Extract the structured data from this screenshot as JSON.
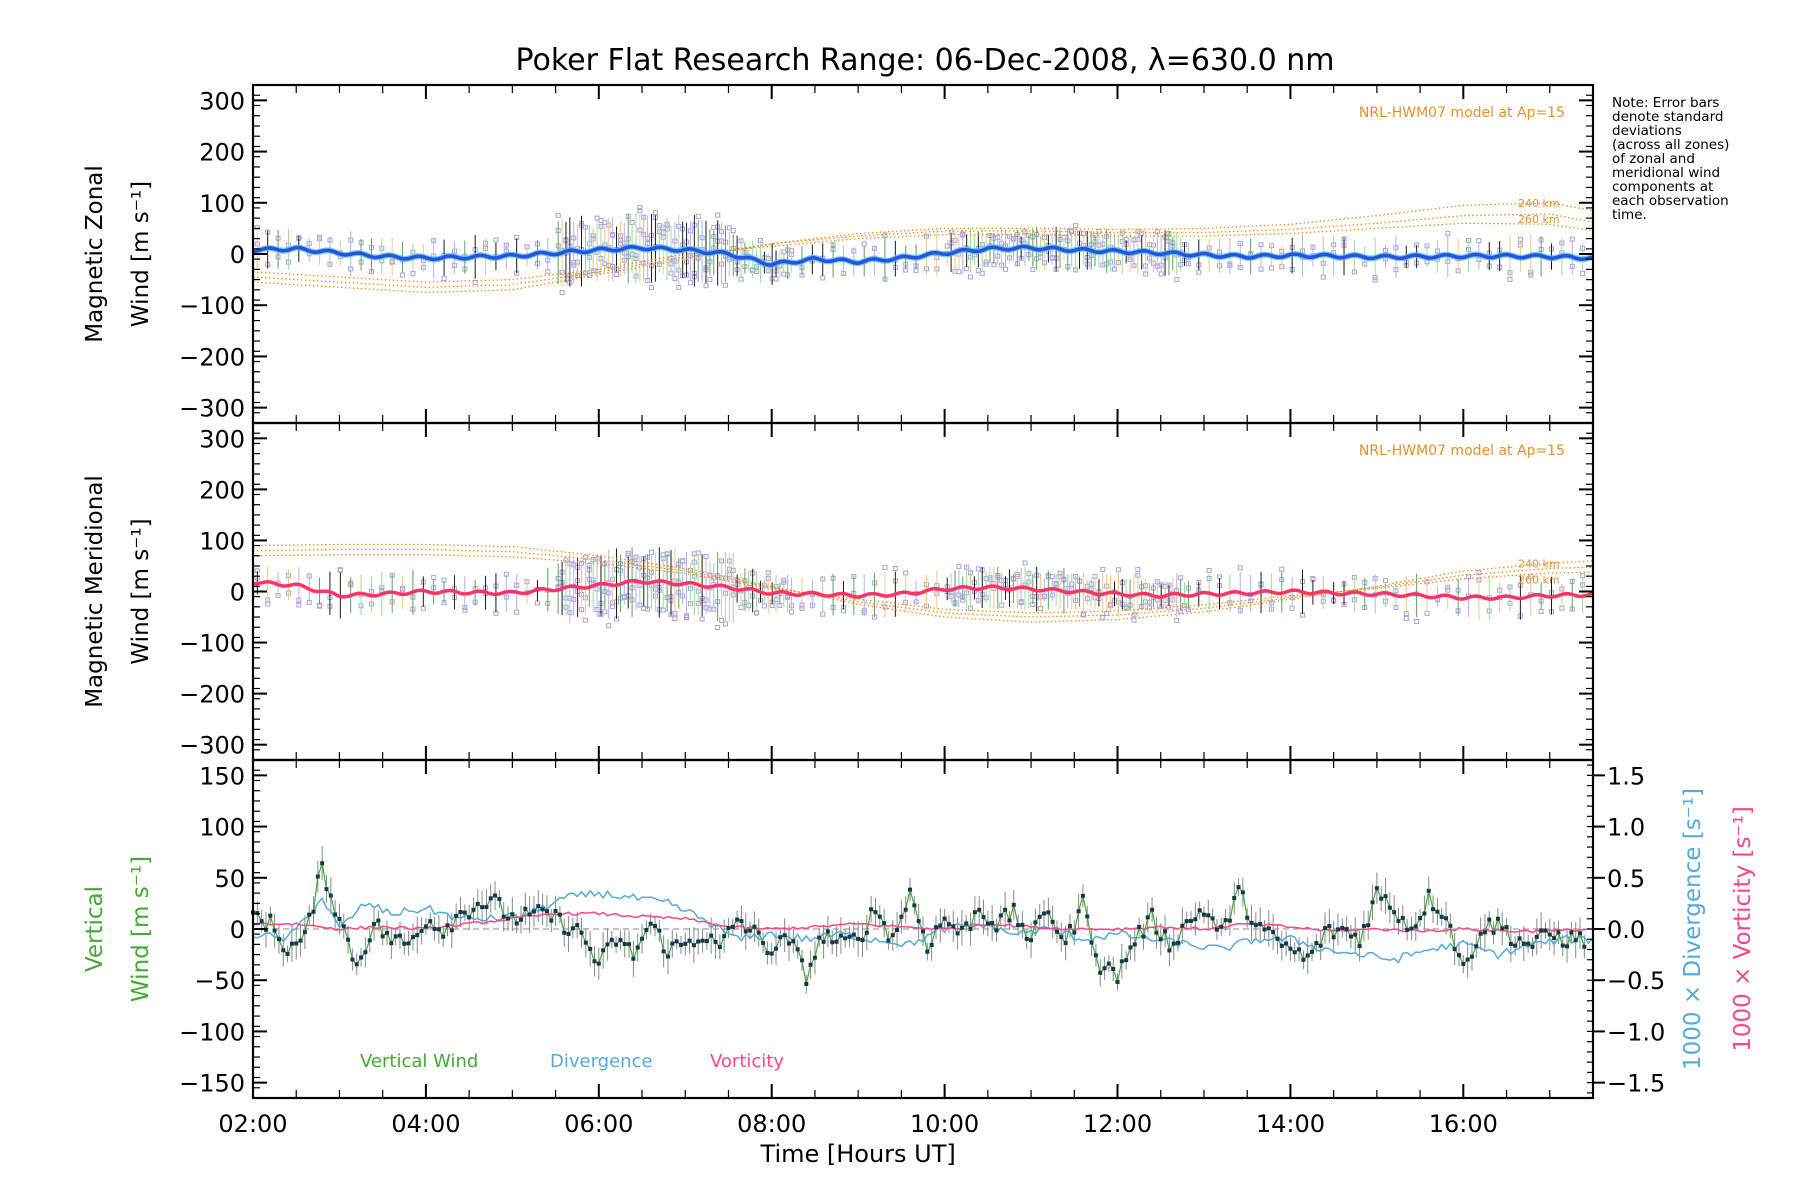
{
  "chart_data": [
    {
      "type": "line",
      "title": "Poker Flat Research Range: 06-Dec-2008, λ=630.0 nm",
      "panel": "zonal",
      "ylabel_line1": "Magnetic Zonal",
      "ylabel_line2": "Wind [m s⁻¹]",
      "ylim": [
        -330,
        330
      ],
      "xlim": [
        2.0,
        17.5
      ],
      "yticks": [
        "300",
        "200",
        "100",
        "0",
        "−100",
        "−200",
        "−300"
      ],
      "ytick_values": [
        300,
        200,
        100,
        0,
        -100,
        -200,
        -300
      ],
      "model_label": "NRL-HWM07 model at Ap=15",
      "model_alt_labels": [
        "240 km",
        "260 km"
      ],
      "series": [
        {
          "name": "",
          "color": "#2255dd",
          "x": [
            2.0,
            2.5,
            3.0,
            3.5,
            4.0,
            4.5,
            5.0,
            5.5,
            6.0,
            6.5,
            7.0,
            7.5,
            8.0,
            8.5,
            9.0,
            9.5,
            10.0,
            10.5,
            11.0,
            11.5,
            12.0,
            12.5,
            13.0,
            13.5,
            14.0,
            14.5,
            15.0,
            15.5,
            16.0,
            16.5,
            17.0,
            17.5
          ],
          "y": [
            8,
            10,
            2,
            -5,
            -8,
            -6,
            -4,
            2,
            8,
            12,
            8,
            0,
            -20,
            -10,
            -15,
            -8,
            2,
            10,
            12,
            8,
            5,
            2,
            -2,
            -5,
            -3,
            -4,
            -6,
            -5,
            -4,
            -4,
            -5,
            -8
          ]
        },
        {
          "name": "",
          "color": "#e8902a",
          "style": "dotted",
          "x": [
            2.0,
            3.0,
            4.0,
            5.0,
            6.0,
            7.0,
            8.0,
            9.0,
            10.0,
            11.0,
            12.0,
            13.0,
            14.0,
            15.0,
            16.0,
            17.0,
            17.5
          ],
          "y": [
            -55,
            -65,
            -75,
            -70,
            -40,
            -10,
            20,
            40,
            50,
            50,
            48,
            50,
            58,
            75,
            95,
            100,
            85
          ]
        },
        {
          "name": "",
          "color": "#e8902a",
          "style": "dotted",
          "x": [
            2.0,
            3.0,
            4.0,
            5.0,
            6.0,
            7.0,
            8.0,
            9.0,
            10.0,
            11.0,
            12.0,
            13.0,
            14.0,
            15.0,
            16.0,
            17.0,
            17.5
          ],
          "y": [
            -45,
            -55,
            -65,
            -60,
            -35,
            -5,
            20,
            35,
            45,
            45,
            42,
            42,
            48,
            60,
            75,
            78,
            62
          ]
        },
        {
          "name": "",
          "color": "#e8902a",
          "style": "dotted",
          "x": [
            2.0,
            3.0,
            4.0,
            5.0,
            6.0,
            7.0,
            8.0,
            9.0,
            10.0,
            11.0,
            12.0,
            13.0,
            14.0,
            15.0,
            16.0,
            17.0,
            17.5
          ],
          "y": [
            -35,
            -45,
            -55,
            -50,
            -30,
            0,
            15,
            30,
            38,
            38,
            35,
            35,
            40,
            50,
            60,
            58,
            45
          ]
        }
      ]
    },
    {
      "type": "line",
      "panel": "meridional",
      "ylabel_line1": "Magnetic Meridional",
      "ylabel_line2": "Wind [m s⁻¹]",
      "ylim": [
        -330,
        330
      ],
      "xlim": [
        2.0,
        17.5
      ],
      "yticks": [
        "300",
        "200",
        "100",
        "0",
        "−100",
        "−200",
        "−300"
      ],
      "ytick_values": [
        300,
        200,
        100,
        0,
        -100,
        -200,
        -300
      ],
      "model_label": "NRL-HWM07 model at Ap=15",
      "model_alt_labels": [
        "240 km",
        "260 km"
      ],
      "series": [
        {
          "name": "",
          "color": "#ff3366",
          "x": [
            2.0,
            2.5,
            3.0,
            3.5,
            4.0,
            4.5,
            5.0,
            5.5,
            6.0,
            6.5,
            7.0,
            7.5,
            8.0,
            8.5,
            9.0,
            9.5,
            10.0,
            10.5,
            11.0,
            11.5,
            12.0,
            12.5,
            13.0,
            13.5,
            14.0,
            14.5,
            15.0,
            15.5,
            16.0,
            16.5,
            17.0,
            17.5
          ],
          "y": [
            18,
            12,
            -8,
            -5,
            0,
            -2,
            -3,
            5,
            12,
            20,
            15,
            8,
            -3,
            -5,
            -8,
            -5,
            5,
            8,
            5,
            0,
            -5,
            -8,
            -5,
            -3,
            0,
            -3,
            -5,
            -8,
            -12,
            -12,
            -8,
            -6
          ]
        },
        {
          "name": "",
          "color": "#e8902a",
          "style": "dotted",
          "x": [
            2.0,
            3.0,
            4.0,
            5.0,
            6.0,
            7.0,
            8.0,
            9.0,
            10.0,
            11.0,
            12.0,
            13.0,
            14.0,
            15.0,
            16.0,
            17.0,
            17.5
          ],
          "y": [
            90,
            92,
            92,
            88,
            70,
            45,
            10,
            -25,
            -50,
            -60,
            -55,
            -40,
            -15,
            10,
            40,
            55,
            60
          ]
        },
        {
          "name": "",
          "color": "#e8902a",
          "style": "dotted",
          "x": [
            2.0,
            3.0,
            4.0,
            5.0,
            6.0,
            7.0,
            8.0,
            9.0,
            10.0,
            11.0,
            12.0,
            13.0,
            14.0,
            15.0,
            16.0,
            17.0,
            17.5
          ],
          "y": [
            80,
            82,
            82,
            78,
            62,
            40,
            8,
            -20,
            -42,
            -50,
            -46,
            -33,
            -12,
            8,
            32,
            45,
            48
          ]
        },
        {
          "name": "",
          "color": "#e8902a",
          "style": "dotted",
          "x": [
            2.0,
            3.0,
            4.0,
            5.0,
            6.0,
            7.0,
            8.0,
            9.0,
            10.0,
            11.0,
            12.0,
            13.0,
            14.0,
            15.0,
            16.0,
            17.0,
            17.5
          ],
          "y": [
            70,
            72,
            72,
            68,
            55,
            35,
            5,
            -15,
            -35,
            -42,
            -38,
            -26,
            -8,
            6,
            25,
            36,
            38
          ]
        }
      ]
    },
    {
      "type": "line",
      "panel": "vertical",
      "ylabel_line1": "Vertical",
      "ylabel_line2": "Wind [m s⁻¹]",
      "ylabel_right_div": "1000 × Divergence [s⁻¹]",
      "ylabel_right_vort": "1000 × Vorticity [s⁻¹]",
      "xlabel": "Time [Hours UT]",
      "ylim": [
        -165,
        165
      ],
      "y2lim": [
        -1.65,
        1.65
      ],
      "xlim": [
        2.0,
        17.5
      ],
      "yticks": [
        "150",
        "100",
        "50",
        "0",
        "−50",
        "−100",
        "−150"
      ],
      "ytick_values": [
        150,
        100,
        50,
        0,
        -50,
        -100,
        -150
      ],
      "y2ticks": [
        "1.5",
        "1.0",
        "0.5",
        "0.0",
        "−0.5",
        "−1.0",
        "−1.5"
      ],
      "y2tick_values": [
        1.5,
        1.0,
        0.5,
        0.0,
        -0.5,
        -1.0,
        -1.5
      ],
      "xticks": [
        "02:00",
        "04:00",
        "06:00",
        "08:00",
        "10:00",
        "12:00",
        "14:00",
        "16:00"
      ],
      "xtick_values": [
        2,
        4,
        6,
        8,
        10,
        12,
        14,
        16
      ],
      "legend": [
        "Vertical Wind",
        "Divergence",
        "Vorticity"
      ],
      "series": [
        {
          "name": "Vertical Wind",
          "color": "#44aa33",
          "x": [
            2.0,
            2.2,
            2.4,
            2.6,
            2.8,
            3.0,
            3.2,
            3.4,
            3.6,
            3.8,
            4.0,
            4.2,
            4.4,
            4.6,
            4.8,
            5.0,
            5.4,
            5.8,
            6.0,
            6.2,
            6.4,
            6.6,
            6.8,
            7.0,
            7.2,
            7.4,
            7.6,
            7.8,
            8.0,
            8.2,
            8.4,
            8.6,
            8.8,
            9.0,
            9.2,
            9.4,
            9.6,
            9.8,
            10.0,
            10.2,
            10.4,
            10.6,
            10.8,
            11.0,
            11.2,
            11.4,
            11.6,
            11.8,
            12.0,
            12.2,
            12.4,
            12.6,
            12.8,
            13.0,
            13.2,
            13.4,
            13.6,
            13.8,
            14.0,
            14.2,
            14.4,
            14.6,
            14.8,
            15.0,
            15.2,
            15.4,
            15.6,
            15.8,
            16.0,
            16.2,
            16.4,
            16.6,
            16.8,
            17.0,
            17.2,
            17.5
          ],
          "y": [
            15,
            5,
            -20,
            -10,
            60,
            10,
            -35,
            5,
            -10,
            -15,
            10,
            0,
            15,
            25,
            25,
            10,
            15,
            -5,
            -35,
            -10,
            -25,
            5,
            -20,
            -15,
            -5,
            -20,
            10,
            -5,
            -20,
            -10,
            -45,
            -5,
            -15,
            -10,
            20,
            -10,
            35,
            -15,
            10,
            -5,
            20,
            5,
            15,
            -10,
            20,
            -15,
            25,
            -35,
            -45,
            -10,
            10,
            -15,
            5,
            20,
            -5,
            35,
            5,
            -10,
            -20,
            -30,
            -5,
            0,
            -10,
            35,
            20,
            0,
            30,
            15,
            -40,
            0,
            5,
            -10,
            -15,
            -5,
            -10,
            -10
          ]
        },
        {
          "name": "Divergence",
          "color": "#55aadd",
          "x": [
            2.0,
            2.4,
            2.8,
            3.0,
            3.3,
            3.6,
            4.0,
            4.4,
            4.8,
            5.2,
            5.6,
            6.0,
            6.4,
            6.8,
            7.2,
            7.6,
            8.0,
            8.4,
            8.8,
            9.2,
            9.6,
            10.0,
            10.4,
            10.8,
            11.2,
            11.6,
            12.0,
            12.4,
            12.8,
            13.2,
            13.6,
            14.0,
            14.4,
            14.8,
            15.2,
            15.6,
            16.0,
            16.4,
            16.8,
            17.2,
            17.5
          ],
          "y": [
            -0.05,
            -0.1,
            0.3,
            0.0,
            0.25,
            0.15,
            0.2,
            0.1,
            0.1,
            0.15,
            0.3,
            0.35,
            0.3,
            0.25,
            0.1,
            -0.1,
            -0.05,
            -0.1,
            -0.05,
            -0.1,
            -0.15,
            0.0,
            0.05,
            -0.05,
            0.0,
            -0.1,
            -0.05,
            -0.1,
            -0.15,
            -0.2,
            -0.1,
            -0.1,
            -0.2,
            -0.25,
            -0.3,
            -0.2,
            -0.15,
            -0.25,
            -0.15,
            -0.1,
            -0.1
          ]
        },
        {
          "name": "Vorticity",
          "color": "#ff4488",
          "x": [
            2.0,
            2.5,
            3.0,
            3.5,
            4.0,
            4.5,
            5.0,
            5.5,
            6.0,
            6.5,
            7.0,
            7.5,
            8.0,
            8.5,
            9.0,
            9.5,
            10.0,
            10.5,
            11.0,
            11.5,
            12.0,
            12.5,
            13.0,
            13.5,
            14.0,
            14.5,
            15.0,
            15.5,
            16.0,
            16.5,
            17.0,
            17.5
          ],
          "y": [
            0.05,
            0.05,
            0.0,
            0.02,
            0.0,
            0.05,
            0.1,
            0.15,
            0.15,
            0.12,
            0.1,
            0.02,
            0.0,
            0.02,
            0.05,
            0.02,
            0.0,
            0.05,
            0.02,
            0.0,
            0.0,
            0.02,
            0.0,
            0.05,
            0.02,
            -0.02,
            0.0,
            -0.02,
            0.0,
            -0.02,
            -0.02,
            0.0
          ]
        }
      ]
    }
  ],
  "note": {
    "lines": [
      "Note: Error bars",
      "denote standard",
      "deviations",
      "(across all zones)",
      "of zonal and",
      "meridional wind",
      "components at",
      "each observation",
      "time."
    ]
  },
  "colors": {
    "zonal_mean": "#2255dd",
    "zonal_light": "#55bbee",
    "meridional_mean": "#ff3366",
    "model": "#e8902a",
    "samples": "#a9a2e0",
    "vertical": "#44aa33",
    "divergence": "#55aadd",
    "vorticity": "#ff4488"
  }
}
